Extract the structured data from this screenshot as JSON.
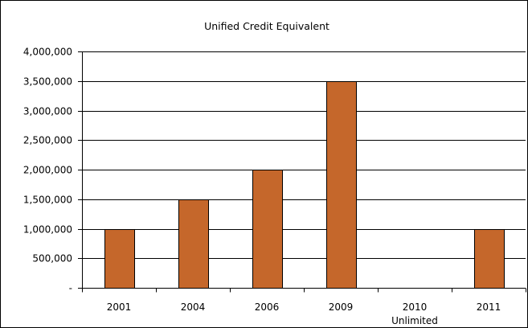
{
  "chart_data": {
    "type": "bar",
    "title": "Unified Credit Equivalent",
    "xlabel": "",
    "ylabel": "",
    "categories": [
      "2001",
      "2004",
      "2006",
      "2009",
      "2010",
      "2011"
    ],
    "category_sublabels": [
      "",
      "",
      "",
      "",
      "Unlimited",
      ""
    ],
    "values": [
      1000000,
      1500000,
      2000000,
      3500000,
      null,
      1000000
    ],
    "ylim": [
      0,
      4000000
    ],
    "y_ticks": [
      0,
      500000,
      1000000,
      1500000,
      2000000,
      2500000,
      3000000,
      3500000,
      4000000
    ],
    "y_tick_labels": [
      "-",
      "500,000",
      "1,000,000",
      "1,500,000",
      "2,000,000",
      "2,500,000",
      "3,000,000",
      "3,500,000",
      "4,000,000"
    ],
    "grid": true,
    "legend": "none",
    "colors": {
      "bar": "#C5672B",
      "bar_outline": "#000000",
      "grid": "#000000",
      "axis": "#000000"
    }
  }
}
